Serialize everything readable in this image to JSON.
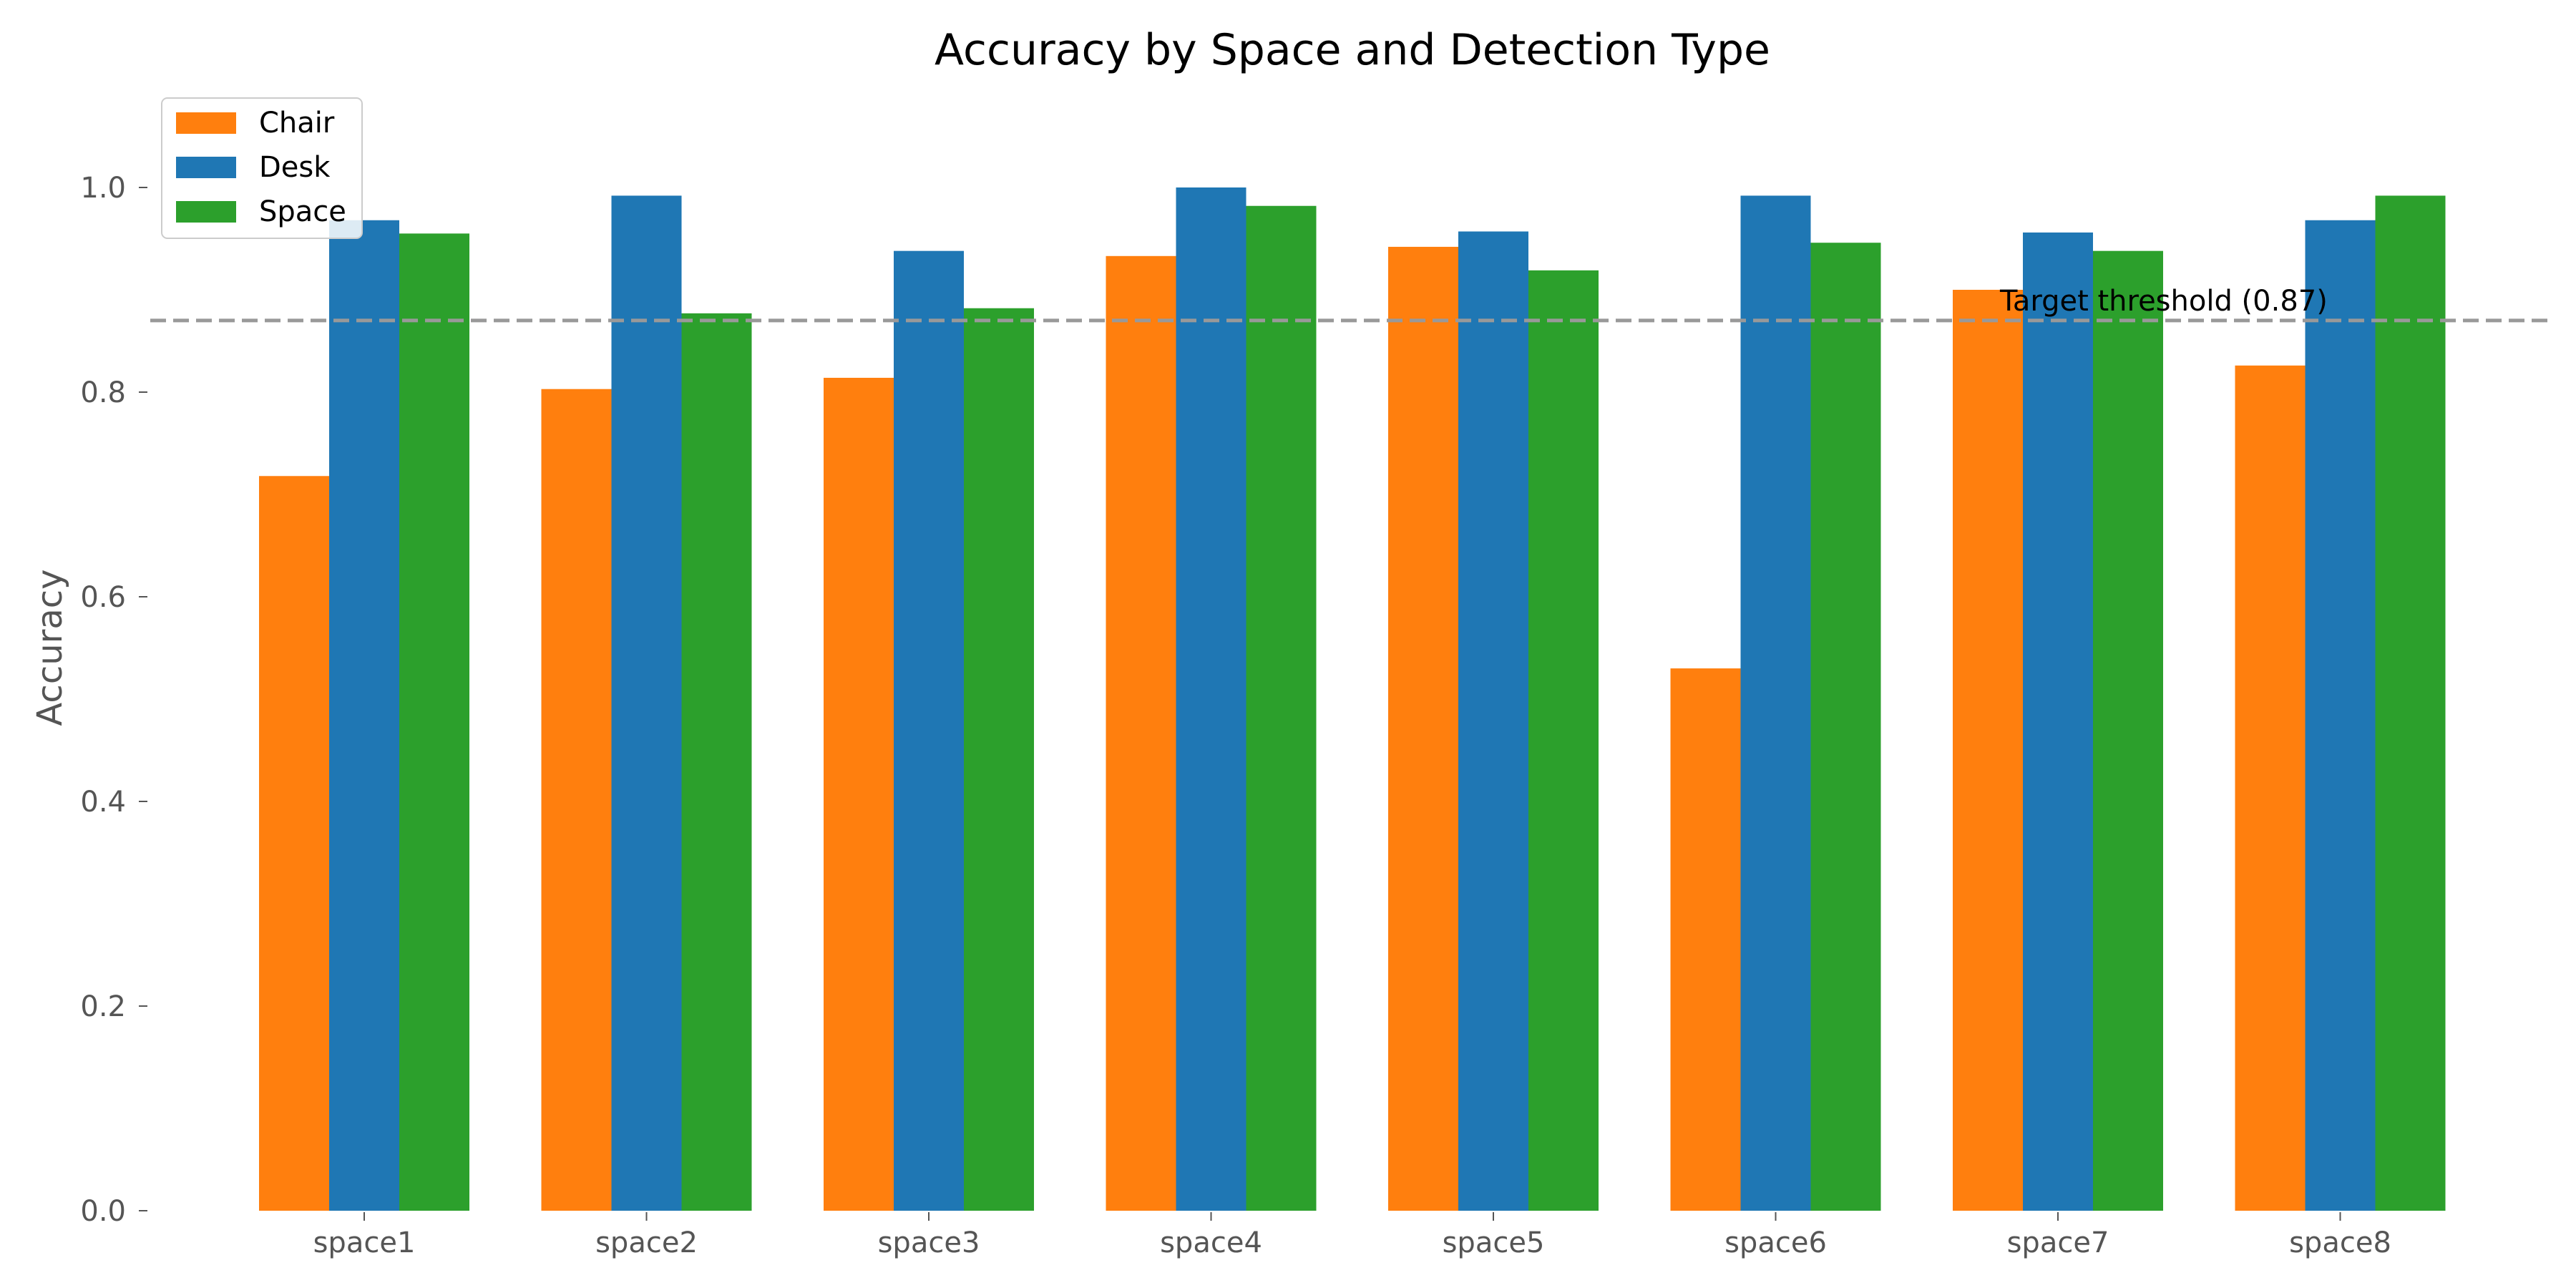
{
  "chart_data": {
    "type": "bar",
    "title": "Accuracy by Space and Detection Type",
    "xlabel": "",
    "ylabel": "Accuracy",
    "categories": [
      "space1",
      "space2",
      "space3",
      "space4",
      "space5",
      "space6",
      "space7",
      "space8"
    ],
    "series": [
      {
        "name": "Chair",
        "color": "#ff7f0e",
        "values": [
          0.718,
          0.803,
          0.814,
          0.933,
          0.942,
          0.53,
          0.9,
          0.826
        ]
      },
      {
        "name": "Desk",
        "color": "#1f77b4",
        "values": [
          0.968,
          0.992,
          0.938,
          1.0,
          0.957,
          0.992,
          0.956,
          0.968
        ]
      },
      {
        "name": "Space",
        "color": "#2ca02c",
        "values": [
          0.955,
          0.877,
          0.882,
          0.982,
          0.919,
          0.946,
          0.938,
          0.992
        ]
      }
    ],
    "ylim": [
      0,
      1.09
    ],
    "yticks": [
      0.0,
      0.2,
      0.4,
      0.6,
      0.8,
      1.0
    ],
    "ytick_labels": [
      "0.0",
      "0.2",
      "0.4",
      "0.6",
      "0.8",
      "1.0"
    ],
    "threshold": {
      "value": 0.87,
      "label": "Target threshold (0.87)",
      "color": "#999999",
      "style": "dashed"
    },
    "legend": {
      "placement": "upper-left"
    },
    "grid": false
  }
}
